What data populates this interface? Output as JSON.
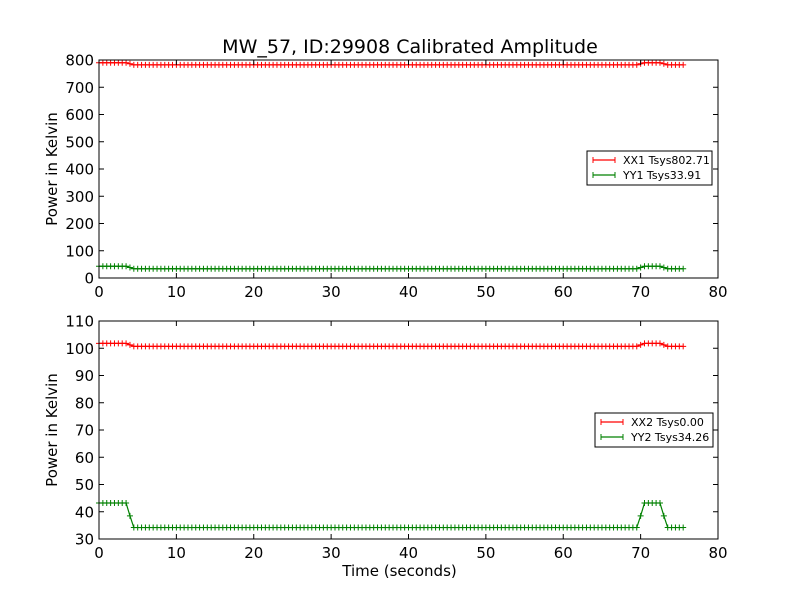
{
  "figure": {
    "title": "MW_57, ID:29908 Calibrated Amplitude",
    "colors": {
      "red": "#ff0000",
      "green": "#008000",
      "axes": "#000000",
      "background": "#ffffff"
    }
  },
  "chart_data": [
    {
      "type": "line",
      "title": "MW_57, ID:29908 Calibrated Amplitude",
      "xlabel": "",
      "ylabel": "Power in Kelvin",
      "xlim": [
        0,
        80
      ],
      "ylim": [
        0,
        800
      ],
      "xticks": [
        0,
        10,
        20,
        30,
        40,
        50,
        60,
        70,
        80
      ],
      "yticks": [
        0,
        100,
        200,
        300,
        400,
        500,
        600,
        700,
        800
      ],
      "grid": false,
      "legend_position": "center-right",
      "marker": "+",
      "series": [
        {
          "name": "XX1 Tsys802.71",
          "color": "#ff0000",
          "x_range": [
            0,
            75.5
          ],
          "x_step": 0.5,
          "points": [
            [
              0,
              790
            ],
            [
              3.5,
              790
            ],
            [
              4.5,
              782
            ],
            [
              69.5,
              782
            ],
            [
              70.5,
              790
            ],
            [
              72.5,
              790
            ],
            [
              73.5,
              782
            ],
            [
              75.5,
              782
            ]
          ]
        },
        {
          "name": "YY1 Tsys33.91",
          "color": "#008000",
          "x_range": [
            0,
            75.5
          ],
          "x_step": 0.5,
          "points": [
            [
              0,
              43
            ],
            [
              3.5,
              43
            ],
            [
              4.5,
              34
            ],
            [
              69.5,
              34
            ],
            [
              70.5,
              43
            ],
            [
              72.5,
              43
            ],
            [
              73.5,
              34
            ],
            [
              75.5,
              34
            ]
          ]
        }
      ]
    },
    {
      "type": "line",
      "title": "",
      "xlabel": "Time (seconds)",
      "ylabel": "Power in Kelvin",
      "xlim": [
        0,
        80
      ],
      "ylim": [
        30,
        110
      ],
      "xticks": [
        0,
        10,
        20,
        30,
        40,
        50,
        60,
        70,
        80
      ],
      "yticks": [
        30,
        40,
        50,
        60,
        70,
        80,
        90,
        100,
        110
      ],
      "grid": false,
      "legend_position": "center-right",
      "marker": "+",
      "series": [
        {
          "name": "XX2 Tsys0.00",
          "color": "#ff0000",
          "x_range": [
            0,
            75.5
          ],
          "x_step": 0.5,
          "points": [
            [
              0,
              101.8
            ],
            [
              3.5,
              101.8
            ],
            [
              4.5,
              100.7
            ],
            [
              69.5,
              100.7
            ],
            [
              70.5,
              101.8
            ],
            [
              72.5,
              101.8
            ],
            [
              73.5,
              100.7
            ],
            [
              75.5,
              100.7
            ]
          ]
        },
        {
          "name": "YY2 Tsys34.26",
          "color": "#008000",
          "x_range": [
            0,
            75.5
          ],
          "x_step": 0.5,
          "points": [
            [
              0,
              43.2
            ],
            [
              3.5,
              43.2
            ],
            [
              4.0,
              38.5
            ],
            [
              4.5,
              34.2
            ],
            [
              69.5,
              34.2
            ],
            [
              70.0,
              38.5
            ],
            [
              70.5,
              43.2
            ],
            [
              72.5,
              43.2
            ],
            [
              73.0,
              38.5
            ],
            [
              73.5,
              34.2
            ],
            [
              75.5,
              34.2
            ]
          ]
        }
      ]
    }
  ]
}
